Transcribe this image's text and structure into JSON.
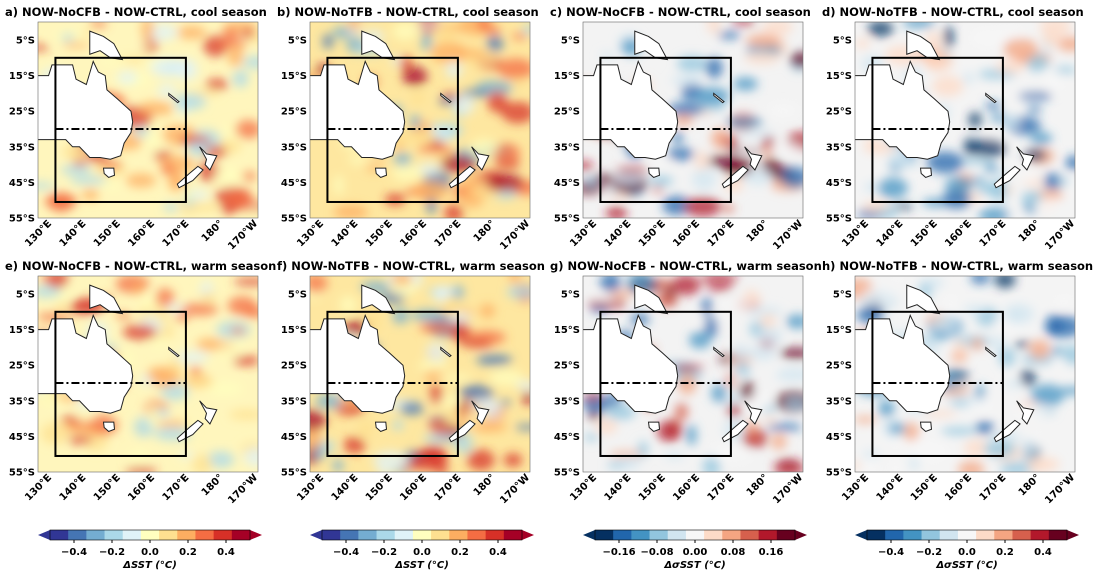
{
  "panels": [
    {
      "title": "a) NOW-NoCFB - NOW-CTRL, cool season"
    },
    {
      "title": "b) NOW-NoTFB - NOW-CTRL, cool season"
    },
    {
      "title": "c) NOW-NoCFB - NOW-CTRL, cool season"
    },
    {
      "title": "d) NOW-NoTFB - NOW-CTRL, cool season"
    },
    {
      "title": "e) NOW-NoCFB - NOW-CTRL, warm season"
    },
    {
      "title": "f) NOW-NoTFB - NOW-CTRL, warm season"
    },
    {
      "title": "g) NOW-NoCFB - NOW-CTRL, warm season"
    },
    {
      "title": "h) NOW-NoTFB - NOW-CTRL, warm season"
    }
  ],
  "lat_ticks": [
    "5°S",
    "15°S",
    "25°S",
    "35°S",
    "45°S",
    "55°S"
  ],
  "lon_ticks": [
    "130°E",
    "140°E",
    "150°E",
    "160°E",
    "170°E",
    "180°",
    "170°W"
  ],
  "colorbars": [
    {
      "label": "ΔSST (°C)",
      "ticks": [
        "−0.4",
        "−0.2",
        "0.0",
        "0.2",
        "0.4"
      ],
      "colors": [
        "#313695",
        "#4575b4",
        "#74add1",
        "#abd9e9",
        "#e0f3f8",
        "#ffffbf",
        "#fee090",
        "#fdae61",
        "#f46d43",
        "#d73027",
        "#a50026"
      ]
    },
    {
      "label": "ΔSST (°C)",
      "ticks": [
        "−0.4",
        "−0.2",
        "0.0",
        "0.2",
        "0.4"
      ],
      "colors": [
        "#313695",
        "#4575b4",
        "#74add1",
        "#abd9e9",
        "#e0f3f8",
        "#ffffbf",
        "#fee090",
        "#fdae61",
        "#f46d43",
        "#d73027",
        "#a50026"
      ]
    },
    {
      "label": "ΔσSST (°C)",
      "ticks": [
        "−0.16",
        "−0.08",
        "0.00",
        "0.08",
        "0.16"
      ],
      "colors": [
        "#053061",
        "#2166ac",
        "#4393c3",
        "#92c5de",
        "#d1e5f0",
        "#f7f7f7",
        "#fddbc7",
        "#f4a582",
        "#d6604d",
        "#b2182b",
        "#67001f"
      ]
    },
    {
      "label": "ΔσSST (°C)",
      "ticks": [
        "−0.4",
        "−0.2",
        "0.0",
        "0.2",
        "0.4"
      ],
      "colors": [
        "#053061",
        "#2166ac",
        "#4393c3",
        "#92c5de",
        "#d1e5f0",
        "#f7f7f7",
        "#fddbc7",
        "#f4a582",
        "#d6604d",
        "#b2182b",
        "#67001f"
      ]
    }
  ]
}
